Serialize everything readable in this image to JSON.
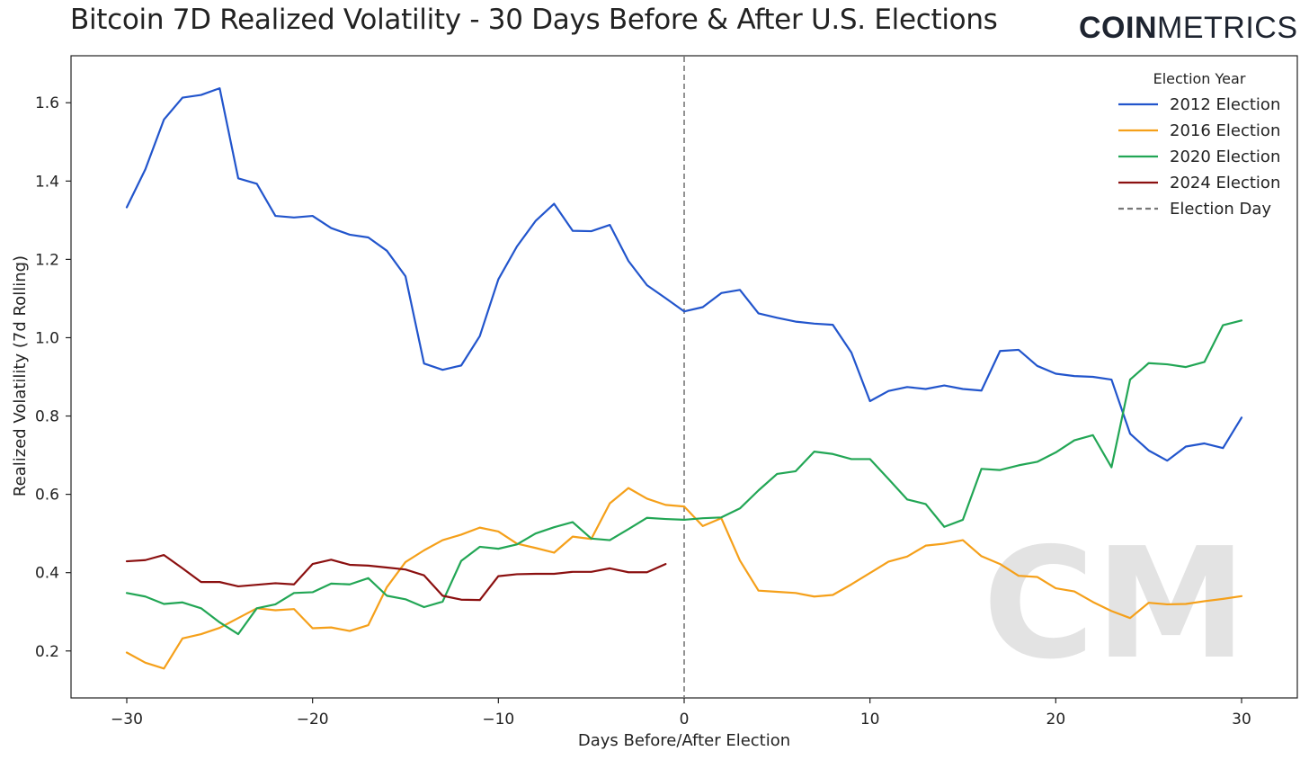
{
  "header": {
    "title": "Bitcoin 7D Realized Volatility - 30 Days Before & After U.S. Elections",
    "brand_bold": "COIN",
    "brand_light": "METRICS",
    "watermark": "CM"
  },
  "chart_data": {
    "type": "line",
    "xlabel": "Days Before/After Election",
    "ylabel": "Realized Volatility (7d Rolling)",
    "xlim": [
      -33,
      33
    ],
    "ylim": [
      0.08,
      1.72
    ],
    "xticks": [
      -30,
      -20,
      -10,
      0,
      10,
      20,
      30
    ],
    "xtick_labels": [
      "−30",
      "−20",
      "−10",
      "0",
      "10",
      "20",
      "30"
    ],
    "yticks": [
      0.2,
      0.4,
      0.6,
      0.8,
      1.0,
      1.2,
      1.4,
      1.6
    ],
    "ytick_labels": [
      "0.2",
      "0.4",
      "0.6",
      "0.8",
      "1.0",
      "1.2",
      "1.4",
      "1.6"
    ],
    "grid": false,
    "legend": {
      "title": "Election Year",
      "placement": "top-right",
      "election_day_label": "Election Day"
    },
    "election_day": {
      "x": 0,
      "color": "#777777"
    },
    "series": [
      {
        "name": "2012 Election",
        "color": "#2255cc",
        "x_start": -30,
        "values": [
          1.333,
          1.43,
          1.557,
          1.613,
          1.62,
          1.637,
          1.407,
          1.393,
          1.311,
          1.307,
          1.311,
          1.28,
          1.263,
          1.256,
          1.222,
          1.157,
          0.934,
          0.918,
          0.929,
          1.004,
          1.149,
          1.233,
          1.298,
          1.342,
          1.273,
          1.272,
          1.288,
          1.196,
          1.134,
          1.101,
          1.067,
          1.078,
          1.114,
          1.122,
          1.062,
          1.051,
          1.041,
          1.036,
          1.033,
          0.962,
          0.838,
          0.864,
          0.874,
          0.869,
          0.878,
          0.869,
          0.865,
          0.966,
          0.969,
          0.928,
          0.908,
          0.902,
          0.9,
          0.893,
          0.755,
          0.712,
          0.686,
          0.722,
          0.73,
          0.718,
          0.796
        ]
      },
      {
        "name": "2016 Election",
        "color": "#f5a01a",
        "x_start": -30,
        "values": [
          0.196,
          0.17,
          0.155,
          0.232,
          0.243,
          0.259,
          0.284,
          0.309,
          0.304,
          0.307,
          0.258,
          0.26,
          0.251,
          0.266,
          0.363,
          0.427,
          0.457,
          0.483,
          0.497,
          0.515,
          0.505,
          0.474,
          0.463,
          0.451,
          0.492,
          0.486,
          0.577,
          0.616,
          0.589,
          0.573,
          0.569,
          0.519,
          0.539,
          0.431,
          0.354,
          0.351,
          0.348,
          0.339,
          0.343,
          0.37,
          0.399,
          0.428,
          0.441,
          0.469,
          0.474,
          0.483,
          0.442,
          0.422,
          0.392,
          0.389,
          0.36,
          0.352,
          0.325,
          0.302,
          0.284,
          0.323,
          0.319,
          0.32,
          0.327,
          0.333,
          0.34
        ]
      },
      {
        "name": "2020 Election",
        "color": "#22a655",
        "x_start": -30,
        "values": [
          0.348,
          0.339,
          0.32,
          0.324,
          0.309,
          0.273,
          0.243,
          0.309,
          0.319,
          0.348,
          0.35,
          0.372,
          0.37,
          0.386,
          0.341,
          0.332,
          0.312,
          0.326,
          0.43,
          0.466,
          0.461,
          0.472,
          0.5,
          0.516,
          0.529,
          0.487,
          0.483,
          0.511,
          0.54,
          0.537,
          0.535,
          0.539,
          0.541,
          0.564,
          0.61,
          0.652,
          0.659,
          0.709,
          0.703,
          0.69,
          0.69,
          0.639,
          0.587,
          0.575,
          0.517,
          0.535,
          0.665,
          0.662,
          0.674,
          0.683,
          0.707,
          0.738,
          0.751,
          0.669,
          0.893,
          0.935,
          0.932,
          0.925,
          0.938,
          1.032,
          1.044
        ]
      },
      {
        "name": "2024 Election",
        "color": "#8b1010",
        "x_start": -30,
        "values": [
          0.429,
          0.432,
          0.445,
          0.411,
          0.376,
          0.376,
          0.365,
          0.369,
          0.373,
          0.37,
          0.422,
          0.433,
          0.42,
          0.418,
          0.413,
          0.408,
          0.393,
          0.341,
          0.331,
          0.33,
          0.391,
          0.396,
          0.397,
          0.397,
          0.402,
          0.402,
          0.411,
          0.401,
          0.401,
          0.422
        ]
      }
    ]
  }
}
